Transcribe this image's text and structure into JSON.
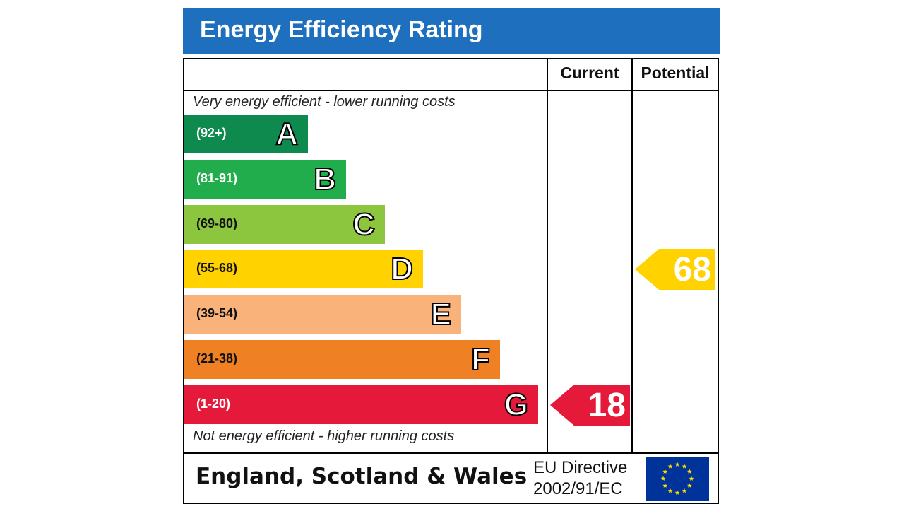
{
  "title": "Energy Efficiency Rating",
  "columns": {
    "current": "Current",
    "potential": "Potential"
  },
  "notes": {
    "top": "Very energy efficient - lower running costs",
    "bottom": "Not energy efficient - higher running costs"
  },
  "footer": {
    "region": "England, Scotland & Wales",
    "directive_line1": "EU Directive",
    "directive_line2": "2002/91/EC",
    "flag": "eu-flag-icon"
  },
  "colors": {
    "header": "#1e6fbd",
    "A": "#0f8a4f",
    "B": "#21ad4c",
    "C": "#8cc63f",
    "D": "#ffd200",
    "E": "#f9b27a",
    "F": "#ef8023",
    "G": "#e51a3b"
  },
  "chart_data": {
    "type": "bar",
    "title": "Energy Efficiency Rating",
    "categories": [
      "A",
      "B",
      "C",
      "D",
      "E",
      "F",
      "G"
    ],
    "ranges": [
      "(92+)",
      "(81-91)",
      "(69-80)",
      "(55-68)",
      "(39-54)",
      "(21-38)",
      "(1-20)"
    ],
    "current": {
      "label": "Current",
      "value": 18,
      "band": "G"
    },
    "potential": {
      "label": "Potential",
      "value": 68,
      "band": "D"
    }
  }
}
